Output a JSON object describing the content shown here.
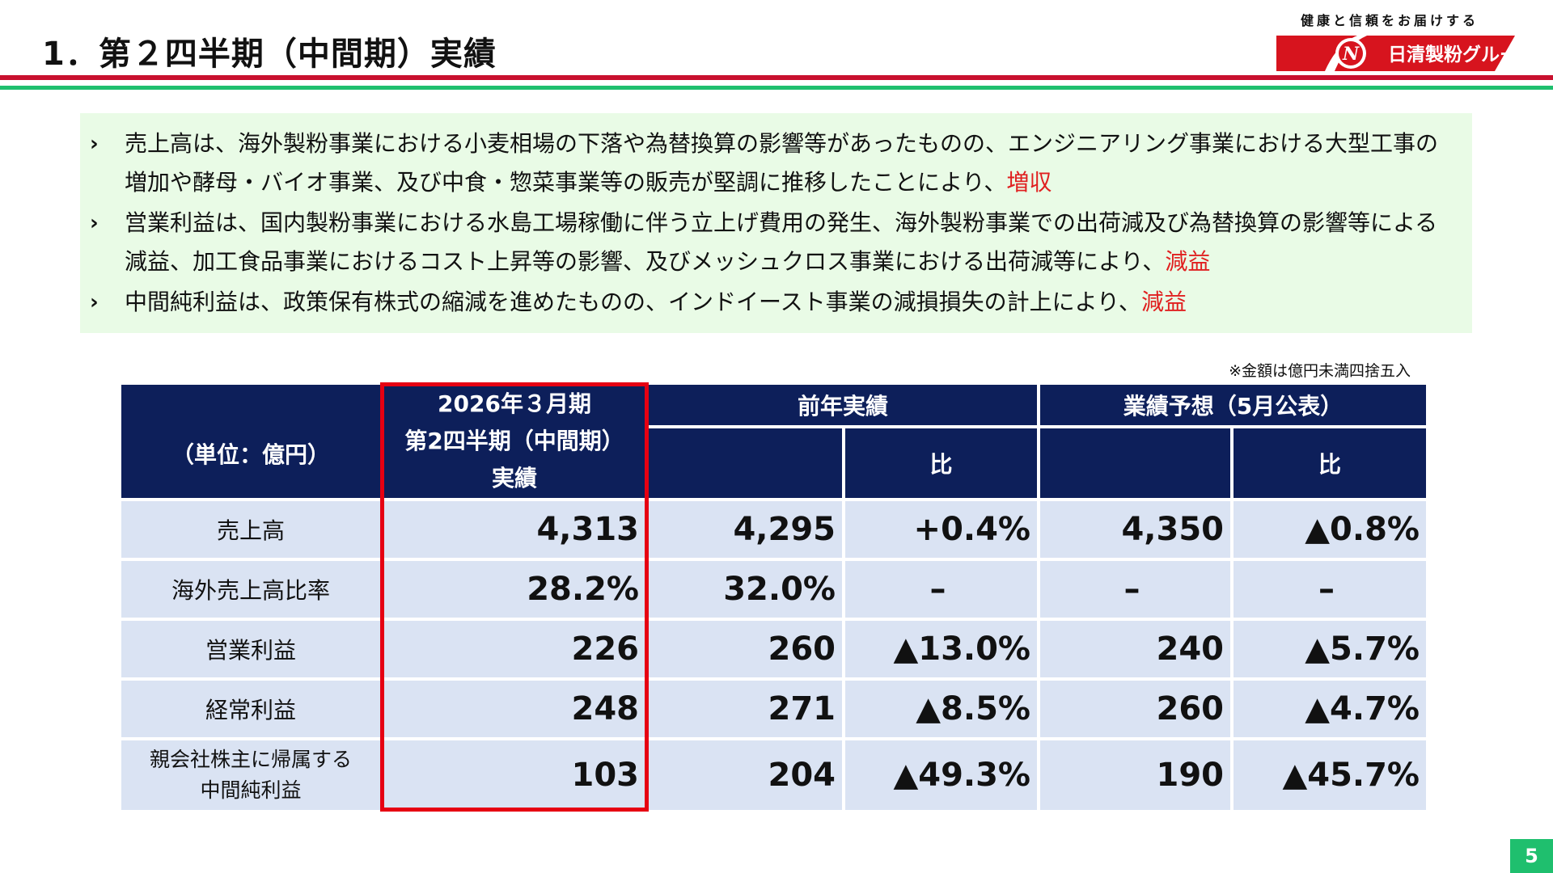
{
  "header": {
    "title": "1．第２四半期（中間期）実績",
    "tagline": "健康と信頼をお届けする",
    "logo_text": "日清製粉グループ",
    "brand_red": "#c8102e",
    "brand_green": "#1fbf6e"
  },
  "summary": {
    "bullets": [
      {
        "text": "売上高は、海外製粉事業における小麦相場の下落や為替換算の影響等があったものの、エンジニアリング事業における大型工事の増加や酵母・バイオ事業、及び中食・惣菜事業等の販売が堅調に推移したことにより、",
        "highlight": "増収"
      },
      {
        "text": "営業利益は、国内製粉事業における水島工場稼働に伴う立上げ費用の発生、海外製粉事業での出荷減及び為替換算の影響等による減益、加工食品事業におけるコスト上昇等の影響、及びメッシュクロス事業における出荷減等により、",
        "highlight": "減益"
      },
      {
        "text": "中間純利益は、政策保有株式の縮減を進めたものの、インドイースト事業の減損損失の計上により、",
        "highlight": "減益"
      }
    ]
  },
  "note": "※金額は億円未満四捨五入",
  "table": {
    "unit": "（単位：億円）",
    "current_header": [
      "2026年３月期",
      "第2四半期（中間期）",
      "実績"
    ],
    "prev_header": "前年実績",
    "forecast_header": "業績予想（5月公表）",
    "ratio_header": "比",
    "rows": [
      {
        "label": "売上高",
        "cells": [
          "4,313",
          "4,295",
          "+0.4%",
          "4,350",
          "▲0.8%"
        ]
      },
      {
        "label": "海外売上高比率",
        "cells": [
          "28.2%",
          "32.0%",
          "–",
          "–",
          "–"
        ]
      },
      {
        "label": "営業利益",
        "cells": [
          "226",
          "260",
          "▲13.0%",
          "240",
          "▲5.7%"
        ]
      },
      {
        "label": "経常利益",
        "cells": [
          "248",
          "271",
          "▲8.5%",
          "260",
          "▲4.7%"
        ]
      },
      {
        "label": "親会社株主に帰属する\n中間純利益",
        "cells": [
          "103",
          "204",
          "▲49.3%",
          "190",
          "▲45.7%"
        ]
      }
    ]
  },
  "page_number": "5"
}
